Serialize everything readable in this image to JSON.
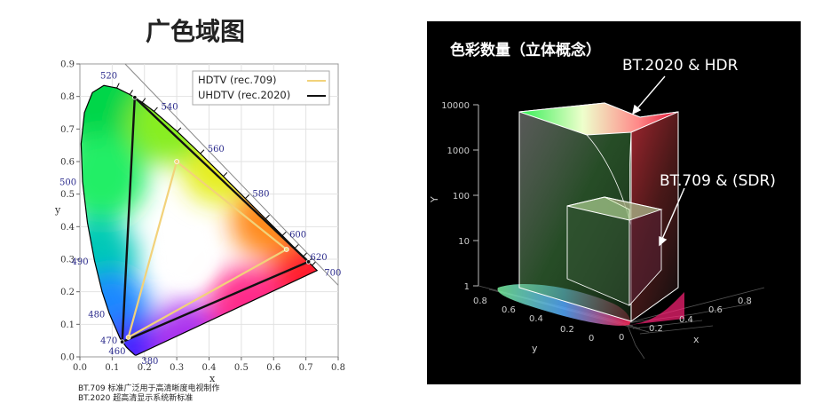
{
  "left": {
    "title": "广色域图",
    "legend": [
      {
        "label": "HDTV (rec.709)",
        "color": "#f2d27a"
      },
      {
        "label": "UHDTV (rec.2020)",
        "color": "#111111"
      }
    ],
    "x_axis_label": "x",
    "y_axis_label": "y",
    "x_ticks": [
      "0.0",
      "0.1",
      "0.2",
      "0.3",
      "0.4",
      "0.5",
      "0.6",
      "0.7",
      "0.8"
    ],
    "y_ticks": [
      "0.0",
      "0.1",
      "0.2",
      "0.3",
      "0.4",
      "0.5",
      "0.6",
      "0.7",
      "0.8",
      "0.9"
    ],
    "wavelength_labels": [
      {
        "text": "380",
        "x": 0.1741,
        "y": 0.005
      },
      {
        "text": "460",
        "x": 0.144,
        "y": 0.0297
      },
      {
        "text": "470",
        "x": 0.1241,
        "y": 0.0578
      },
      {
        "text": "480",
        "x": 0.0913,
        "y": 0.1327
      },
      {
        "text": "490",
        "x": 0.0454,
        "y": 0.295
      },
      {
        "text": "500",
        "x": 0.0082,
        "y": 0.5384
      },
      {
        "text": "520",
        "x": 0.0743,
        "y": 0.8338
      },
      {
        "text": "540",
        "x": 0.2296,
        "y": 0.7543
      },
      {
        "text": "560",
        "x": 0.3731,
        "y": 0.6245
      },
      {
        "text": "580",
        "x": 0.5125,
        "y": 0.4866
      },
      {
        "text": "600",
        "x": 0.627,
        "y": 0.3725
      },
      {
        "text": "620",
        "x": 0.6915,
        "y": 0.3083
      },
      {
        "text": "700",
        "x": 0.7347,
        "y": 0.2653
      }
    ],
    "rec709_primaries": [
      [
        0.64,
        0.33
      ],
      [
        0.3,
        0.6
      ],
      [
        0.15,
        0.06
      ]
    ],
    "rec2020_primaries": [
      [
        0.708,
        0.292
      ],
      [
        0.17,
        0.797
      ],
      [
        0.131,
        0.046
      ]
    ],
    "footnotes": [
      "BT.709 标准广泛用于高清晰度电视制作",
      "BT.2020 超高清显示系统新标准"
    ]
  },
  "right": {
    "title": "色彩数量（立体概念）",
    "callout_2020": "BT.2020 & HDR",
    "callout_709": "BT.709 & (SDR)",
    "y_axis_label": "Y",
    "y_ticks": [
      "1",
      "10",
      "100",
      "1000",
      "10000"
    ],
    "x_axis_label_left": "y",
    "x_axis_label_right": "x",
    "left_ticks": [
      "0.8",
      "0.6",
      "0.4",
      "0.2",
      "0"
    ],
    "right_ticks": [
      "0",
      "0.2",
      "0.4",
      "0.6",
      "0.8"
    ]
  }
}
